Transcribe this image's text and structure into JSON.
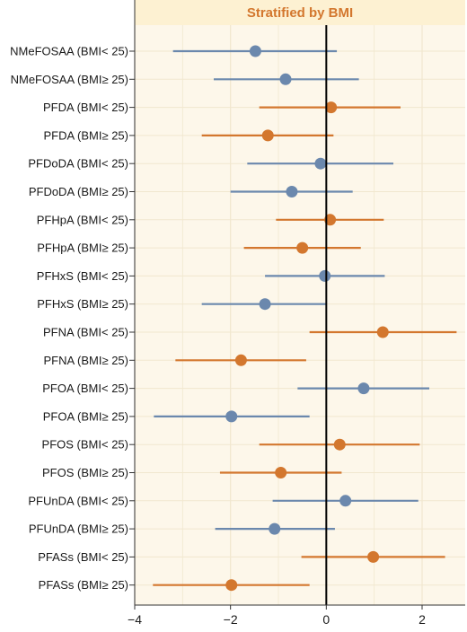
{
  "chart_data": {
    "type": "forest",
    "title": "Stratified by BMI",
    "xlim": [
      -4,
      2.9
    ],
    "xticks": [
      -4,
      -2,
      0,
      2
    ],
    "reference_line": 0,
    "grid": true,
    "colors": {
      "blue": "#6b88ad",
      "orange": "#d3772e",
      "panel_bg": "#fdf7ea",
      "strip_bg": "#fdf1d2",
      "strip_text": "#d3772e",
      "grid": "#f1e7cf",
      "ref_line": "#000000"
    },
    "rows": [
      {
        "label": "NMeFOSAA (BMI< 25)",
        "est": -1.48,
        "lo": -3.2,
        "hi": 0.22,
        "color": "blue"
      },
      {
        "label": "NMeFOSAA (BMI≥ 25)",
        "est": -0.85,
        "lo": -2.35,
        "hi": 0.68,
        "color": "blue"
      },
      {
        "label": "PFDA (BMI< 25)",
        "est": 0.1,
        "lo": -1.4,
        "hi": 1.55,
        "color": "orange"
      },
      {
        "label": "PFDA (BMI≥ 25)",
        "est": -1.22,
        "lo": -2.6,
        "hi": 0.15,
        "color": "orange"
      },
      {
        "label": "PFDoDA (BMI< 25)",
        "est": -0.12,
        "lo": -1.65,
        "hi": 1.4,
        "color": "blue"
      },
      {
        "label": "PFDoDA (BMI≥ 25)",
        "est": -0.72,
        "lo": -2.0,
        "hi": 0.55,
        "color": "blue"
      },
      {
        "label": "PFHpA (BMI< 25)",
        "est": 0.08,
        "lo": -1.05,
        "hi": 1.2,
        "color": "orange"
      },
      {
        "label": "PFHpA (BMI≥ 25)",
        "est": -0.5,
        "lo": -1.72,
        "hi": 0.72,
        "color": "orange"
      },
      {
        "label": "PFHxS (BMI< 25)",
        "est": -0.03,
        "lo": -1.28,
        "hi": 1.22,
        "color": "blue"
      },
      {
        "label": "PFHxS (BMI≥ 25)",
        "est": -1.28,
        "lo": -2.6,
        "hi": 0.0,
        "color": "blue"
      },
      {
        "label": "PFNA (BMI< 25)",
        "est": 1.18,
        "lo": -0.35,
        "hi": 2.72,
        "color": "orange"
      },
      {
        "label": "PFNA (BMI≥ 25)",
        "est": -1.78,
        "lo": -3.15,
        "hi": -0.42,
        "color": "orange"
      },
      {
        "label": "PFOA (BMI< 25)",
        "est": 0.78,
        "lo": -0.6,
        "hi": 2.15,
        "color": "blue"
      },
      {
        "label": "PFOA (BMI≥ 25)",
        "est": -1.98,
        "lo": -3.6,
        "hi": -0.35,
        "color": "blue"
      },
      {
        "label": "PFOS (BMI< 25)",
        "est": 0.28,
        "lo": -1.4,
        "hi": 1.95,
        "color": "orange"
      },
      {
        "label": "PFOS (BMI≥ 25)",
        "est": -0.95,
        "lo": -2.22,
        "hi": 0.32,
        "color": "orange"
      },
      {
        "label": "PFUnDA (BMI< 25)",
        "est": 0.4,
        "lo": -1.12,
        "hi": 1.92,
        "color": "blue"
      },
      {
        "label": "PFUnDA (BMI≥ 25)",
        "est": -1.08,
        "lo": -2.32,
        "hi": 0.18,
        "color": "blue"
      },
      {
        "label": "PFASs (BMI< 25)",
        "est": 0.98,
        "lo": -0.52,
        "hi": 2.48,
        "color": "orange"
      },
      {
        "label": "PFASs (BMI≥ 25)",
        "est": -1.98,
        "lo": -3.62,
        "hi": -0.35,
        "color": "orange"
      }
    ]
  }
}
